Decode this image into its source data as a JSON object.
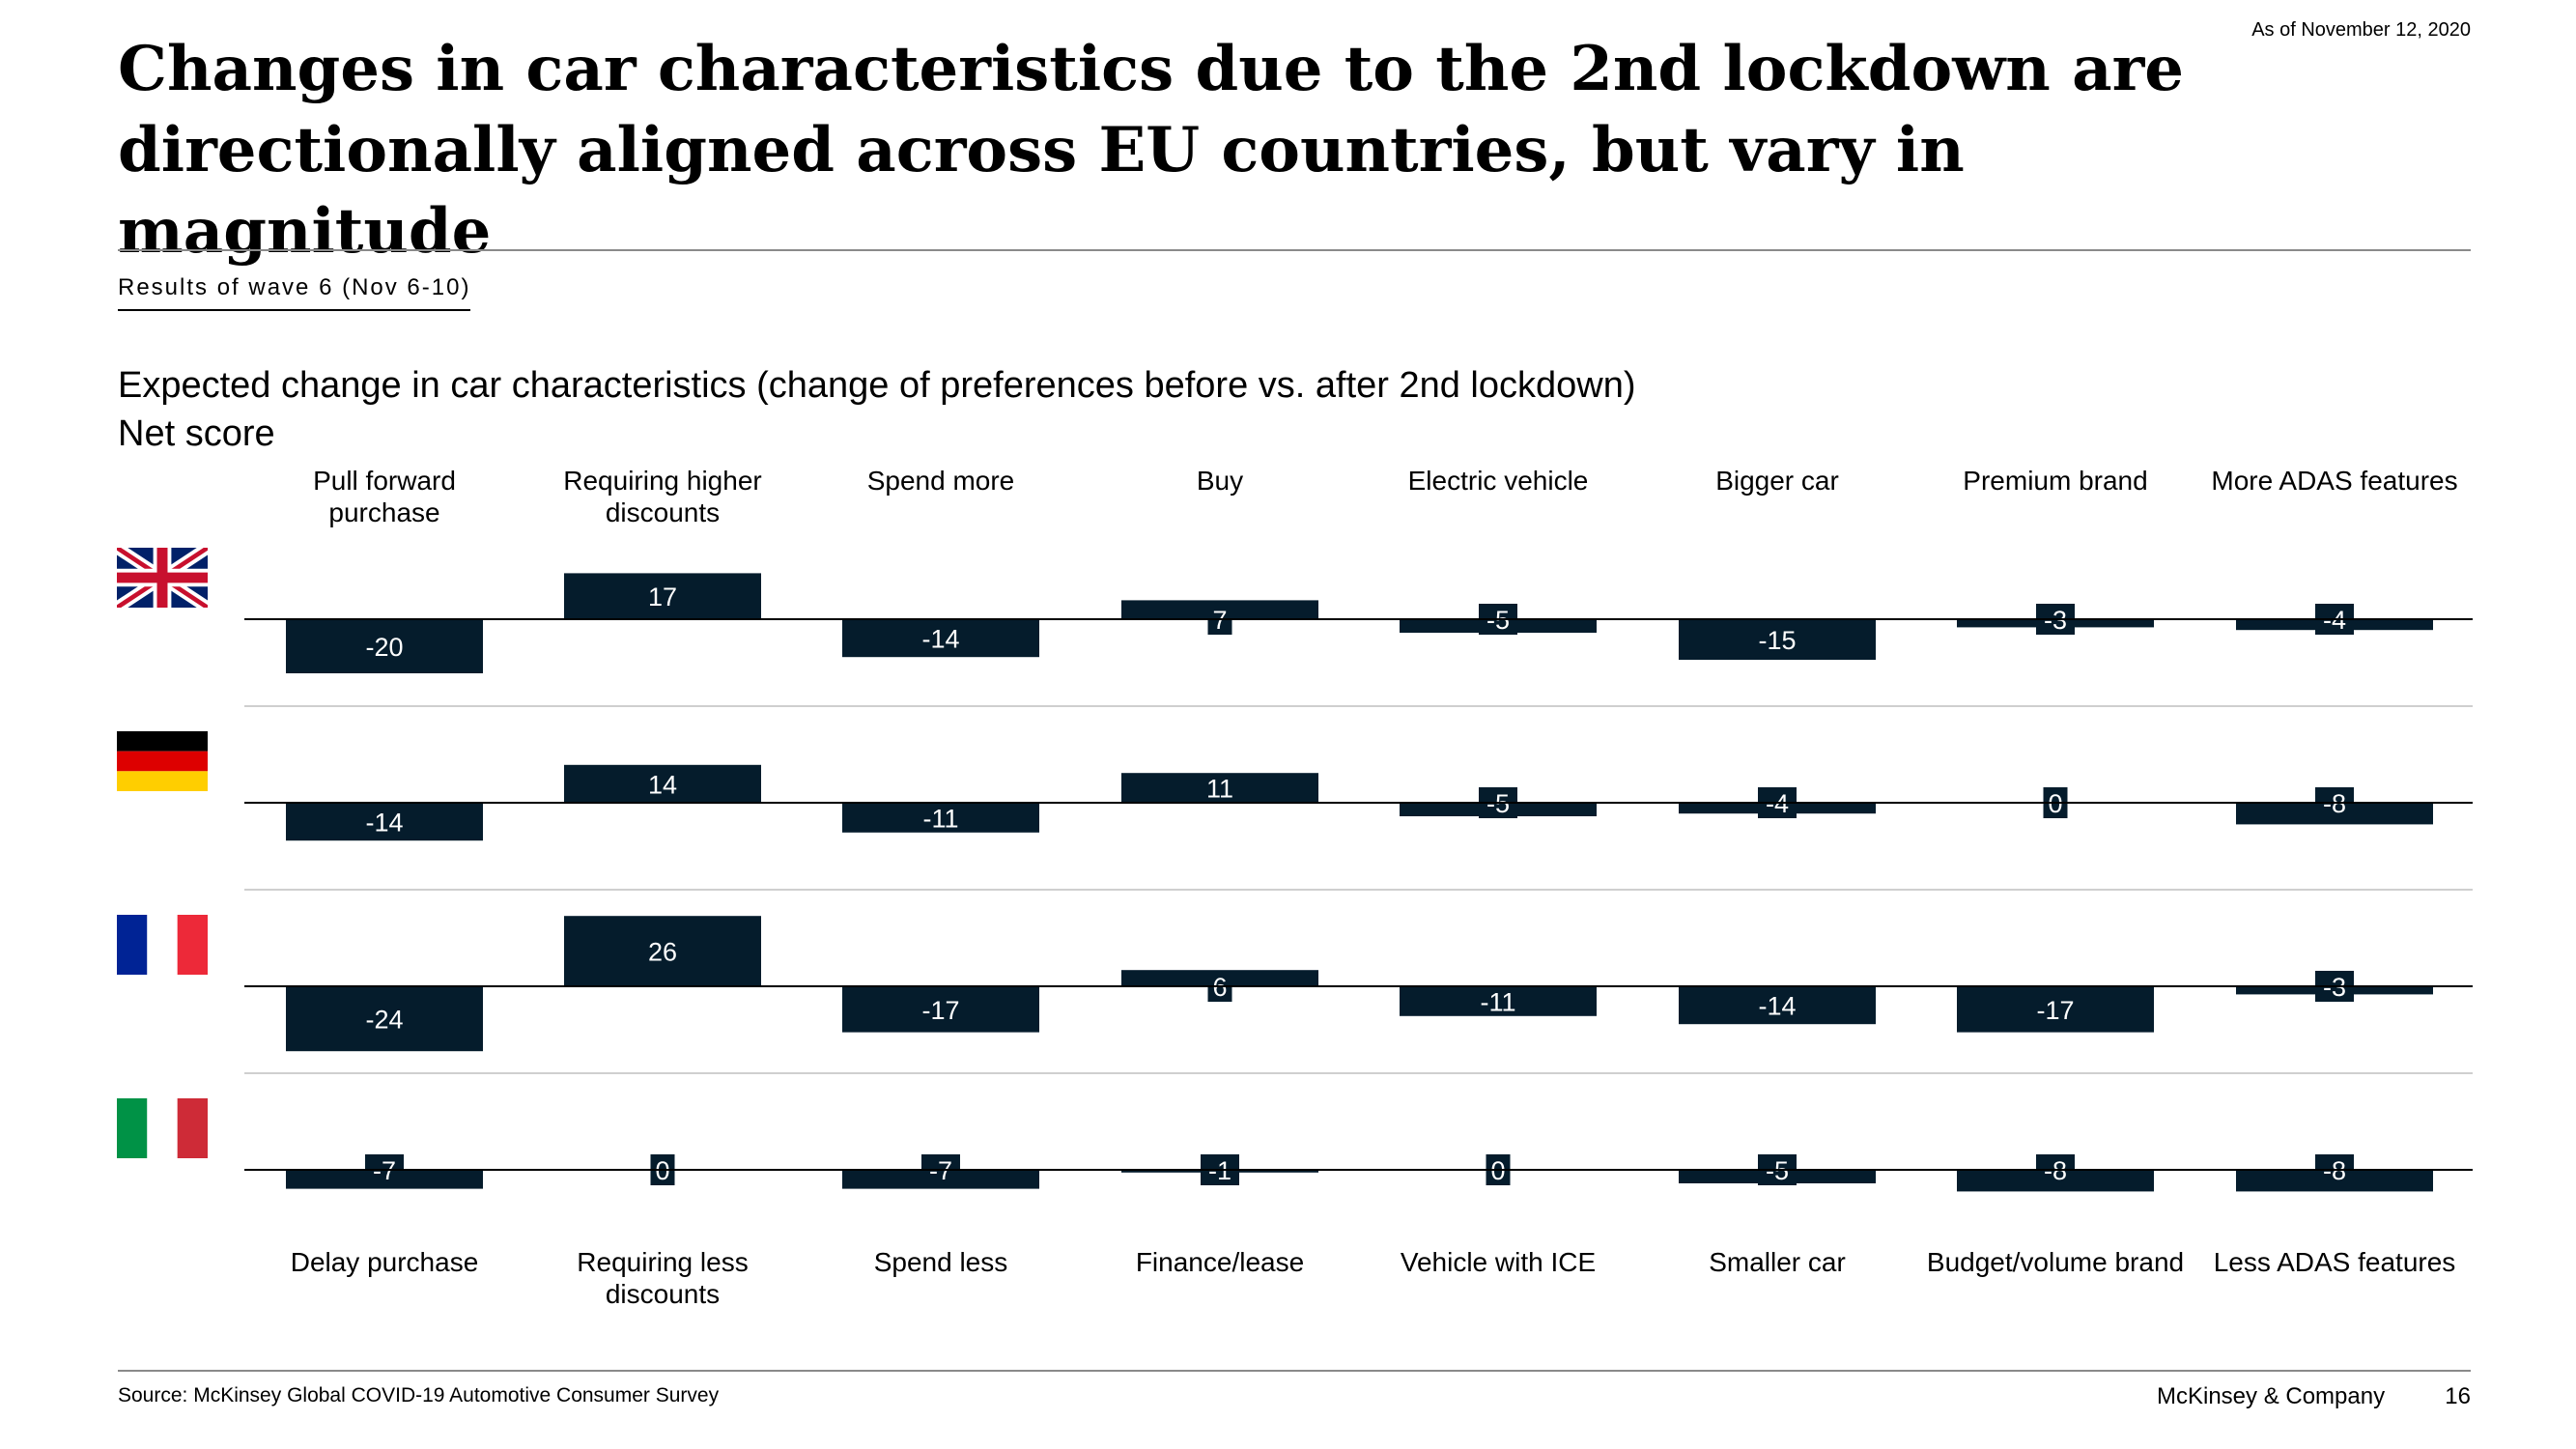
{
  "header": {
    "as_of": "As of November 12, 2020",
    "title": "Changes in car characteristics due to the 2nd lockdown are directionally aligned across EU countries, but vary in magnitude",
    "wave_label": "Results of wave 6 (Nov 6-10)",
    "subtitle": "Expected change in car characteristics (change of preferences before vs. after 2nd lockdown)",
    "unit": "Net score"
  },
  "footer": {
    "source": "Source: McKinsey Global COVID-19 Automotive Consumer Survey",
    "company": "McKinsey & Company",
    "page": "16"
  },
  "flags": [
    {
      "country_icon": "uk-flag-icon"
    },
    {
      "country_icon": "germany-flag-icon"
    },
    {
      "country_icon": "france-flag-icon"
    },
    {
      "country_icon": "italy-flag-icon"
    }
  ],
  "chart_data": {
    "type": "bar",
    "title": "Expected change in car characteristics (change of preferences before vs. after 2nd lockdown)",
    "ylabel": "Net score",
    "positive_labels": [
      "Pull forward purchase",
      "Requiring higher discounts",
      "Spend more",
      "Buy",
      "Electric vehicle",
      "Bigger car",
      "Premium brand",
      "More ADAS features"
    ],
    "negative_labels": [
      "Delay purchase",
      "Requiring less discounts",
      "Spend less",
      "Finance/lease",
      "Vehicle with ICE",
      "Smaller car",
      "Budget/volume brand",
      "Less ADAS features"
    ],
    "bar_color": "#051c2c",
    "series": [
      {
        "values": [
          -20,
          17,
          -14,
          7,
          -5,
          -15,
          -3,
          -4
        ]
      },
      {
        "values": [
          -14,
          14,
          -11,
          11,
          -5,
          -4,
          0,
          -8
        ]
      },
      {
        "values": [
          -24,
          26,
          -17,
          6,
          -11,
          -14,
          -17,
          -3
        ]
      },
      {
        "values": [
          -7,
          0,
          -7,
          -1,
          0,
          -5,
          -8,
          -8
        ]
      }
    ]
  }
}
